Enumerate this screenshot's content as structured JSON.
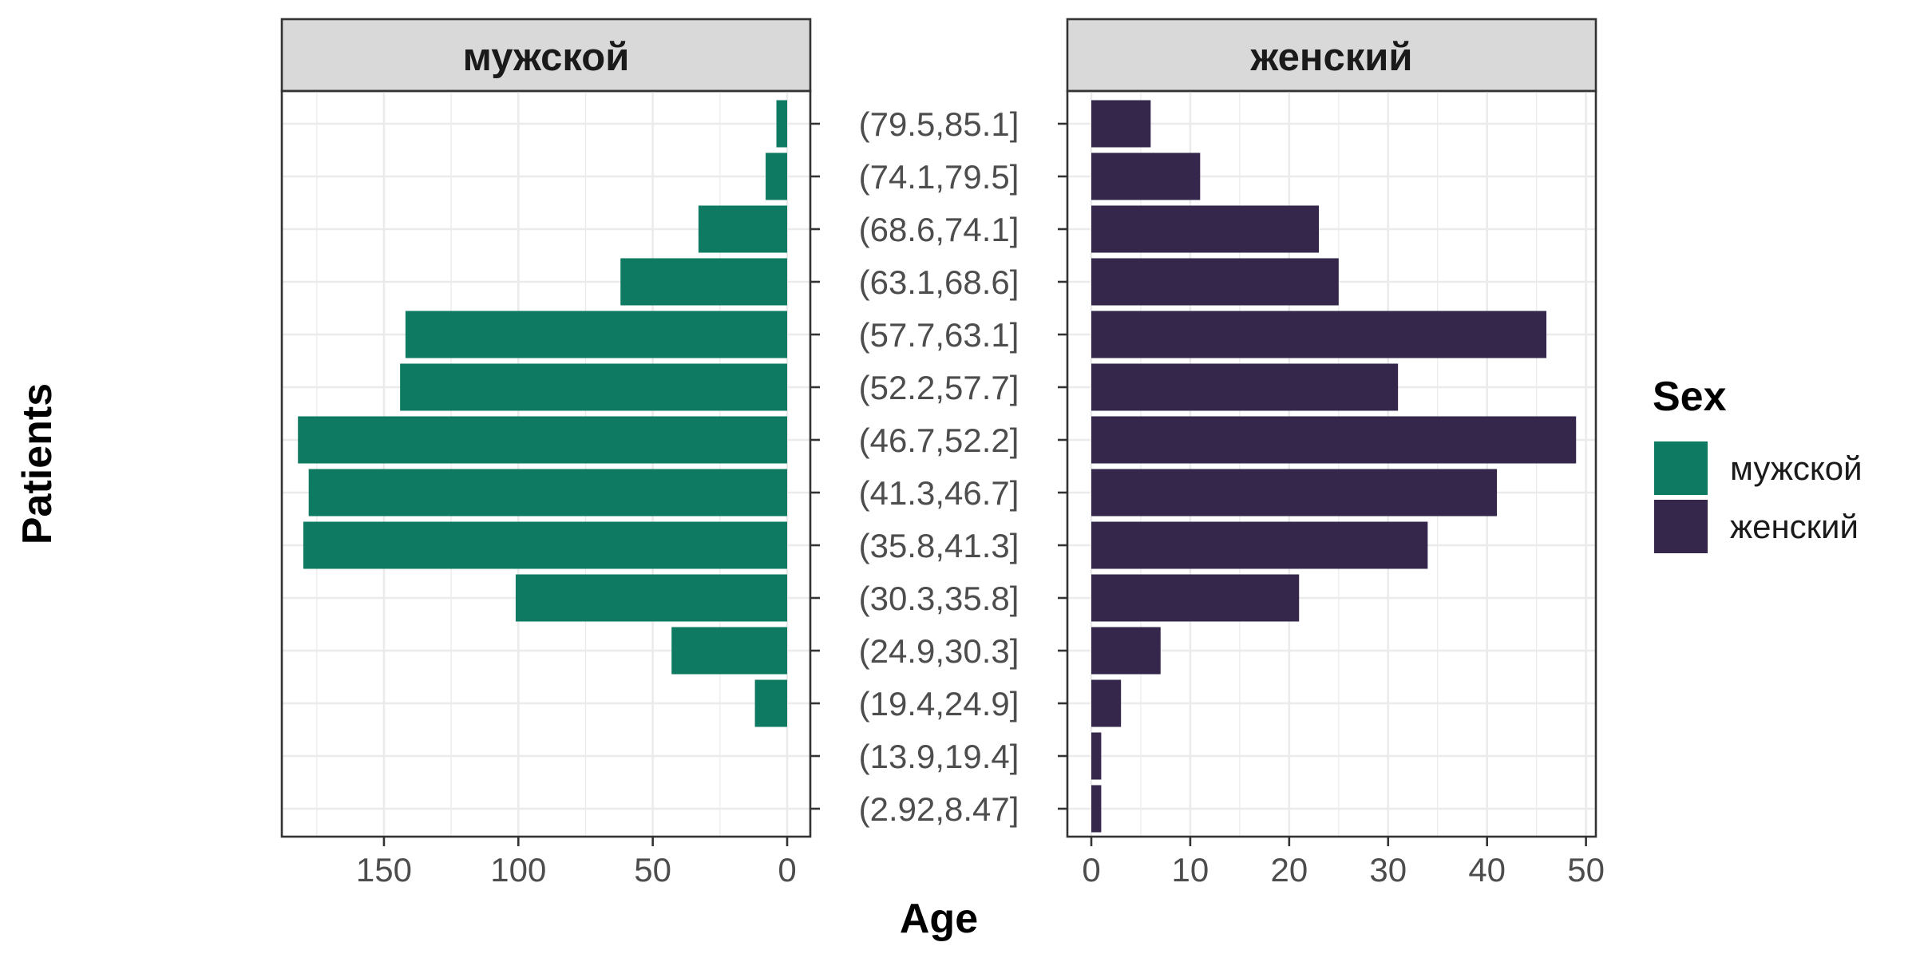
{
  "chart_data": {
    "type": "bar",
    "orientation": "horizontal",
    "layout": "population-pyramid",
    "xlabel": "Age",
    "ylabel": "Patients",
    "categories": [
      "(2.92,8.47]",
      "(13.9,19.4]",
      "(19.4,24.9]",
      "(24.9,30.3]",
      "(30.3,35.8]",
      "(35.8,41.3]",
      "(41.3,46.7]",
      "(46.7,52.2]",
      "(52.2,57.7]",
      "(57.7,63.1]",
      "(63.1,68.6]",
      "(68.6,74.1]",
      "(74.1,79.5]",
      "(79.5,85.1]"
    ],
    "series": [
      {
        "name": "мужской",
        "color": "#0e7a62",
        "xlim": [
          0,
          188
        ],
        "reversed": true,
        "ticks": [
          0,
          50,
          100,
          150
        ],
        "values": [
          0,
          0,
          12,
          43,
          101,
          180,
          178,
          182,
          144,
          142,
          62,
          33,
          8,
          4
        ]
      },
      {
        "name": "женский",
        "color": "#35264b",
        "xlim": [
          0,
          51
        ],
        "reversed": false,
        "ticks": [
          0,
          10,
          20,
          30,
          40,
          50
        ],
        "values": [
          1,
          1,
          3,
          7,
          21,
          34,
          41,
          49,
          31,
          46,
          25,
          23,
          11,
          6
        ]
      }
    ],
    "legend": {
      "title": "Sex",
      "position": "right"
    },
    "grid": true,
    "background": "#ffffff"
  }
}
